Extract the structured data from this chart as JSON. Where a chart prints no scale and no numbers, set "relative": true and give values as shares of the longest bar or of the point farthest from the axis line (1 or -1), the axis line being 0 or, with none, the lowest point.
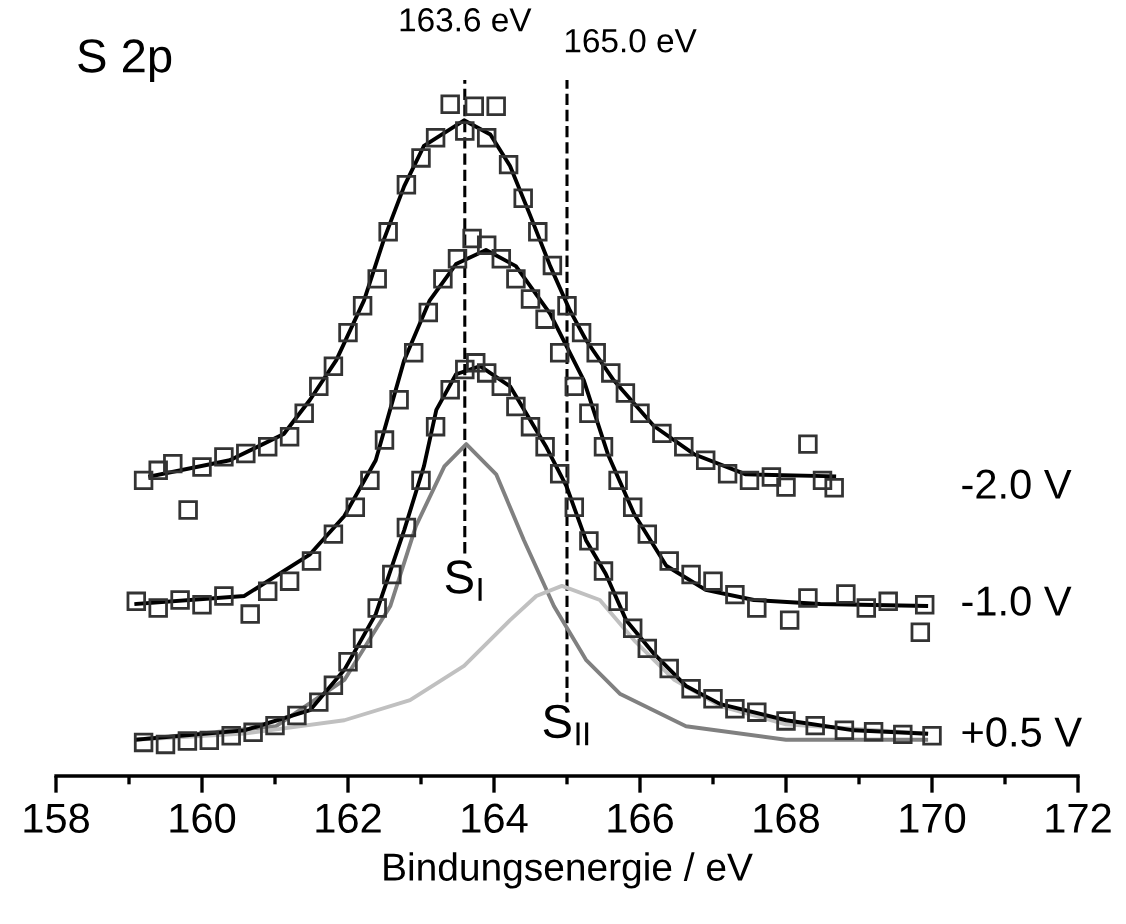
{
  "chart_data": {
    "type": "scatter",
    "relative": true,
    "xlabel": "Bindungsenergie / eV",
    "xlim": [
      158,
      172
    ],
    "xticks": [
      158,
      160,
      162,
      164,
      166,
      168,
      170,
      172
    ],
    "tick_labels": "x",
    "grid": false,
    "legend": false,
    "annotations": [
      "S 2p",
      {
        "text": "S$_{I}$",
        "x": 163.6,
        "y": 0.29
      },
      {
        "text": "S$_{II}$",
        "x": 165.0,
        "y": 0.075
      }
    ],
    "ref_lines": [
      {
        "axis": "x",
        "value": 163.6,
        "label": "163.6 eV",
        "color": "#000000",
        "line_style": "dashed"
      },
      {
        "axis": "x",
        "value": 165.0,
        "label": "165.0 eV",
        "color": "#000000",
        "line_style": "dashed"
      }
    ],
    "series": [
      {
        "type": "line",
        "color": "#808080",
        "line_style": "solid",
        "x": [
          159.1,
          161.01,
          161.95,
          162.58,
          162.93,
          163.32,
          163.62,
          164.03,
          164.41,
          164.82,
          165.26,
          165.73,
          166.63,
          168.0,
          169.92
        ],
        "values": [
          0.054,
          0.074,
          0.143,
          0.253,
          0.372,
          0.461,
          0.494,
          0.449,
          0.351,
          0.253,
          0.173,
          0.122,
          0.074,
          0.054,
          0.054
        ]
      },
      {
        "type": "line",
        "color": "#c0c0c0",
        "line_style": "solid",
        "x": [
          159.1,
          160.58,
          161.95,
          162.85,
          163.59,
          164.22,
          164.58,
          164.93,
          165.45,
          165.92,
          166.19,
          166.47,
          167.1,
          168.0,
          169.92
        ],
        "values": [
          0.054,
          0.063,
          0.083,
          0.113,
          0.164,
          0.232,
          0.268,
          0.283,
          0.262,
          0.202,
          0.173,
          0.143,
          0.104,
          0.077,
          0.063
        ]
      },
      {
        "name": "+0.5 V",
        "color": "#333333",
        "marker": "square",
        "x": [
          159.2,
          159.5,
          159.8,
          160.1,
          160.4,
          160.7,
          161.0,
          161.3,
          161.6,
          161.8,
          162.0,
          162.2,
          162.4,
          162.6,
          162.8,
          163.0,
          163.2,
          163.4,
          163.6,
          163.75,
          163.9,
          164.1,
          164.3,
          164.5,
          164.7,
          164.9,
          165.1,
          165.3,
          165.5,
          165.7,
          165.9,
          166.1,
          166.4,
          166.7,
          167.0,
          167.3,
          167.6,
          168.0,
          168.4,
          168.8,
          169.2,
          169.6,
          170.0
        ],
        "values": [
          0.05,
          0.047,
          0.052,
          0.053,
          0.06,
          0.065,
          0.075,
          0.09,
          0.11,
          0.135,
          0.17,
          0.205,
          0.25,
          0.3,
          0.37,
          0.44,
          0.52,
          0.575,
          0.605,
          0.615,
          0.6,
          0.58,
          0.55,
          0.52,
          0.49,
          0.45,
          0.4,
          0.35,
          0.305,
          0.26,
          0.22,
          0.19,
          0.16,
          0.13,
          0.115,
          0.1,
          0.095,
          0.082,
          0.075,
          0.068,
          0.066,
          0.062,
          0.06
        ]
      },
      {
        "type": "line",
        "color": "#000000",
        "line_style": "solid",
        "x": [
          159.1,
          160.58,
          161.48,
          161.95,
          162.38,
          162.77,
          163.04,
          163.21,
          163.48,
          163.81,
          164.22,
          164.71,
          164.99,
          165.26,
          165.53,
          165.81,
          166.19,
          166.63,
          167.1,
          168.0,
          168.93,
          169.92
        ],
        "values": [
          0.054,
          0.068,
          0.098,
          0.158,
          0.241,
          0.366,
          0.461,
          0.545,
          0.598,
          0.61,
          0.58,
          0.491,
          0.432,
          0.351,
          0.301,
          0.232,
          0.182,
          0.134,
          0.107,
          0.083,
          0.068,
          0.063
        ]
      },
      {
        "name": "-1.0 V",
        "color": "#333333",
        "marker": "square",
        "x": [
          159.1,
          159.4,
          159.7,
          160.0,
          160.3,
          160.66,
          160.9,
          161.2,
          161.5,
          161.8,
          162.1,
          162.3,
          162.5,
          162.7,
          162.9,
          163.1,
          163.3,
          163.5,
          163.7,
          163.9,
          164.1,
          164.3,
          164.5,
          164.7,
          164.9,
          165.1,
          165.3,
          165.5,
          165.7,
          165.9,
          166.1,
          166.4,
          166.7,
          167.0,
          167.3,
          167.6,
          168.05,
          168.3,
          168.82,
          169.1,
          169.4,
          169.84,
          169.9
        ],
        "values": [
          0.26,
          0.25,
          0.262,
          0.255,
          0.268,
          0.241,
          0.275,
          0.29,
          0.32,
          0.36,
          0.4,
          0.44,
          0.5,
          0.56,
          0.63,
          0.69,
          0.74,
          0.77,
          0.8,
          0.79,
          0.77,
          0.74,
          0.71,
          0.68,
          0.63,
          0.58,
          0.54,
          0.49,
          0.44,
          0.4,
          0.36,
          0.32,
          0.3,
          0.29,
          0.27,
          0.25,
          0.232,
          0.265,
          0.271,
          0.25,
          0.26,
          0.214,
          0.255
        ]
      },
      {
        "type": "line",
        "color": "#000000",
        "line_style": "solid",
        "x": [
          159.1,
          160.58,
          161.48,
          161.95,
          162.38,
          162.77,
          163.12,
          163.48,
          163.89,
          164.3,
          164.77,
          165.23,
          165.56,
          165.92,
          166.36,
          166.9,
          167.56,
          168.47,
          169.92
        ],
        "values": [
          0.256,
          0.268,
          0.33,
          0.387,
          0.47,
          0.619,
          0.708,
          0.762,
          0.783,
          0.759,
          0.688,
          0.589,
          0.479,
          0.39,
          0.313,
          0.277,
          0.262,
          0.256,
          0.253
        ]
      },
      {
        "name": "-2.0 V",
        "color": "#333333",
        "marker": "square",
        "x": [
          159.2,
          159.4,
          159.6,
          159.81,
          160.0,
          160.3,
          160.6,
          160.9,
          161.2,
          161.4,
          161.6,
          161.8,
          162.0,
          162.2,
          162.4,
          162.55,
          162.8,
          163.0,
          163.2,
          163.4,
          163.6,
          163.73,
          163.9,
          164.03,
          164.2,
          164.4,
          164.6,
          164.8,
          165.0,
          165.2,
          165.4,
          165.6,
          165.8,
          166.0,
          166.3,
          166.6,
          166.9,
          167.2,
          167.5,
          167.8,
          168.0,
          168.3,
          168.5,
          168.66
        ],
        "values": [
          0.44,
          0.455,
          0.465,
          0.396,
          0.46,
          0.475,
          0.48,
          0.49,
          0.505,
          0.54,
          0.58,
          0.61,
          0.66,
          0.7,
          0.74,
          0.81,
          0.88,
          0.92,
          0.95,
          1.0,
          0.96,
          0.997,
          0.95,
          0.997,
          0.91,
          0.86,
          0.81,
          0.76,
          0.7,
          0.66,
          0.63,
          0.6,
          0.57,
          0.54,
          0.51,
          0.49,
          0.47,
          0.45,
          0.44,
          0.445,
          0.43,
          0.494,
          0.44,
          0.429
        ]
      },
      {
        "type": "line",
        "color": "#000000",
        "line_style": "solid",
        "x": [
          159.29,
          160.38,
          161.12,
          161.48,
          161.84,
          162.22,
          162.49,
          162.77,
          163.04,
          163.59,
          163.95,
          164.22,
          164.49,
          164.77,
          165.04,
          165.26,
          165.64,
          166.19,
          166.74,
          167.45,
          168.66
        ],
        "values": [
          0.446,
          0.47,
          0.509,
          0.56,
          0.619,
          0.708,
          0.798,
          0.878,
          0.938,
          0.976,
          0.955,
          0.908,
          0.836,
          0.759,
          0.693,
          0.649,
          0.589,
          0.521,
          0.479,
          0.449,
          0.446
        ]
      }
    ]
  }
}
